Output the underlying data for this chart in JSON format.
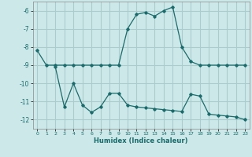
{
  "title": "",
  "xlabel": "Humidex (Indice chaleur)",
  "bg_color": "#cce8e8",
  "grid_color": "#aacccc",
  "line_color": "#1a6b6b",
  "xlim": [
    -0.5,
    23.5
  ],
  "ylim": [
    -12.5,
    -5.5
  ],
  "yticks": [
    -12,
    -11,
    -10,
    -9,
    -8,
    -7,
    -6
  ],
  "xticks": [
    0,
    1,
    2,
    3,
    4,
    5,
    6,
    7,
    8,
    9,
    10,
    11,
    12,
    13,
    14,
    15,
    16,
    17,
    18,
    19,
    20,
    21,
    22,
    23
  ],
  "line1_x": [
    0,
    1,
    2,
    3,
    4,
    5,
    6,
    7,
    8,
    9,
    10,
    11,
    12,
    13,
    14,
    15,
    16,
    17,
    18,
    19,
    20,
    21,
    22,
    23
  ],
  "line1_y": [
    -8.2,
    -9.0,
    -9.0,
    -9.0,
    -9.0,
    -9.0,
    -9.0,
    -9.0,
    -9.0,
    -9.0,
    -7.0,
    -6.2,
    -6.1,
    -6.3,
    -6.0,
    -5.8,
    -8.0,
    -8.8,
    -9.0,
    -9.0,
    -9.0,
    -9.0,
    -9.0,
    -9.0
  ],
  "line2_x": [
    2,
    3,
    4,
    5,
    6,
    7,
    8,
    9,
    10,
    11,
    12,
    13,
    14,
    15,
    16,
    17,
    18,
    19,
    20,
    21,
    22,
    23
  ],
  "line2_y": [
    -9.1,
    -11.3,
    -10.0,
    -11.2,
    -11.6,
    -11.3,
    -10.55,
    -10.55,
    -11.2,
    -11.3,
    -11.35,
    -11.4,
    -11.45,
    -11.5,
    -11.55,
    -10.6,
    -10.7,
    -11.7,
    -11.75,
    -11.8,
    -11.85,
    -12.0
  ]
}
